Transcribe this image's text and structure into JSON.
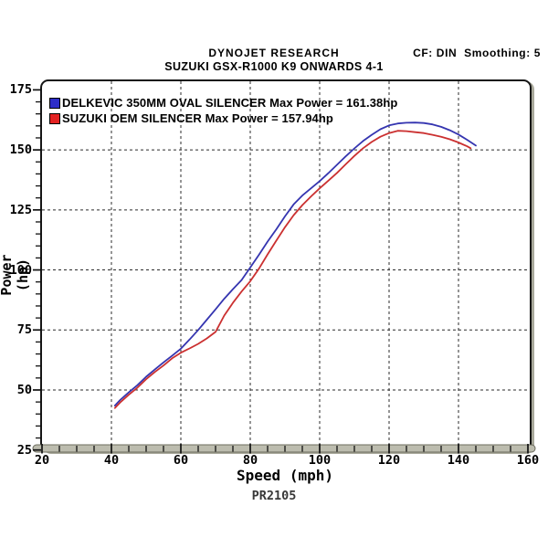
{
  "header": {
    "title": "DYNOJET RESEARCH",
    "subtitle": "SUZUKI GSX-R1000 K9 ONWARDS 4-1",
    "right_annotation": "CF: DIN  Smoothing: 5"
  },
  "footer": {
    "code": "PR2105"
  },
  "chart_data": {
    "type": "line",
    "title": "DYNOJET RESEARCH",
    "subtitle": "SUZUKI GSX-R1000 K9 ONWARDS 4-1",
    "annotation_top_right": "CF: DIN  Smoothing: 5",
    "xlabel": "Speed (mph)",
    "ylabel": "Power (hp)",
    "footer": "PR2105",
    "xlim": [
      20,
      160
    ],
    "ylim": [
      25,
      178
    ],
    "x_major_ticks": [
      20,
      40,
      60,
      80,
      100,
      120,
      140,
      160
    ],
    "y_major_ticks": [
      25,
      50,
      75,
      100,
      125,
      150,
      175
    ],
    "x_minor_step": 5,
    "y_minor_step": 5,
    "grid": {
      "style": "dashed",
      "color": "#2b2b2b",
      "x_lines": [
        40,
        60,
        80,
        100,
        120,
        140
      ],
      "y_lines": [
        50,
        75,
        100,
        125,
        150
      ]
    },
    "legend_position": "top-left-inside",
    "axis_bar_color": "#bcbcae",
    "series": [
      {
        "name": "delkevic",
        "legend": "DELKEVIC 350MM OVAL SILENCER Max Power = 161.38hp",
        "max_power_hp": 161.38,
        "color": "#3535b0",
        "swatch_color": "#2d2dc8",
        "points": [
          [
            41,
            43.5
          ],
          [
            42.5,
            45.8
          ],
          [
            45,
            49
          ],
          [
            47.5,
            52
          ],
          [
            50,
            55.5
          ],
          [
            52.5,
            58.5
          ],
          [
            55,
            61.5
          ],
          [
            57.5,
            64.3
          ],
          [
            60,
            67.2
          ],
          [
            62.5,
            71
          ],
          [
            65,
            75
          ],
          [
            67.5,
            79.3
          ],
          [
            70,
            83.6
          ],
          [
            72.5,
            88
          ],
          [
            75,
            92
          ],
          [
            77.5,
            95.8
          ],
          [
            80,
            101
          ],
          [
            82.5,
            106.3
          ],
          [
            85,
            111.8
          ],
          [
            87.5,
            116.9
          ],
          [
            90,
            122.3
          ],
          [
            92.5,
            127.3
          ],
          [
            95,
            131
          ],
          [
            97.5,
            134
          ],
          [
            100,
            137
          ],
          [
            102.5,
            140.3
          ],
          [
            105,
            143.8
          ],
          [
            107.5,
            147.3
          ],
          [
            110,
            150.6
          ],
          [
            112.5,
            153.7
          ],
          [
            115,
            156.3
          ],
          [
            117.5,
            158.6
          ],
          [
            120,
            160.2
          ],
          [
            122.5,
            161
          ],
          [
            125,
            161.3
          ],
          [
            127.5,
            161.38
          ],
          [
            130,
            161.2
          ],
          [
            132.5,
            160.6
          ],
          [
            135,
            159.6
          ],
          [
            137.5,
            158.2
          ],
          [
            140,
            156.4
          ],
          [
            142.5,
            154.2
          ],
          [
            145,
            151.8
          ]
        ]
      },
      {
        "name": "suzuki-oem",
        "legend": "SUZUKI OEM SILENCER Max Power = 157.94hp",
        "max_power_hp": 157.94,
        "color": "#cb3030",
        "swatch_color": "#e32222",
        "points": [
          [
            41,
            42.5
          ],
          [
            42.5,
            44.8
          ],
          [
            45,
            48
          ],
          [
            47.5,
            51
          ],
          [
            50,
            54.5
          ],
          [
            52.5,
            57.5
          ],
          [
            55,
            60.2
          ],
          [
            57.5,
            63.2
          ],
          [
            60,
            65.5
          ],
          [
            62.5,
            67.3
          ],
          [
            65,
            69.2
          ],
          [
            67.5,
            71.5
          ],
          [
            70,
            74.2
          ],
          [
            72.5,
            81
          ],
          [
            75,
            86.3
          ],
          [
            77.5,
            91
          ],
          [
            80,
            95.3
          ],
          [
            82.5,
            100.5
          ],
          [
            85,
            106.5
          ],
          [
            87.5,
            112.2
          ],
          [
            90,
            117.8
          ],
          [
            92.5,
            122.8
          ],
          [
            95,
            127
          ],
          [
            97.5,
            130.6
          ],
          [
            100,
            134
          ],
          [
            102.5,
            137.2
          ],
          [
            105,
            140.4
          ],
          [
            107.5,
            144
          ],
          [
            110,
            147.5
          ],
          [
            112.5,
            150.7
          ],
          [
            115,
            153.3
          ],
          [
            117.5,
            155.5
          ],
          [
            120,
            157
          ],
          [
            122.5,
            157.94
          ],
          [
            125,
            157.8
          ],
          [
            127.5,
            157.4
          ],
          [
            130,
            157
          ],
          [
            132.5,
            156.3
          ],
          [
            135,
            155.5
          ],
          [
            137.5,
            154.4
          ],
          [
            140,
            153.1
          ],
          [
            142.5,
            151.5
          ],
          [
            143.5,
            150.7
          ]
        ]
      }
    ]
  }
}
